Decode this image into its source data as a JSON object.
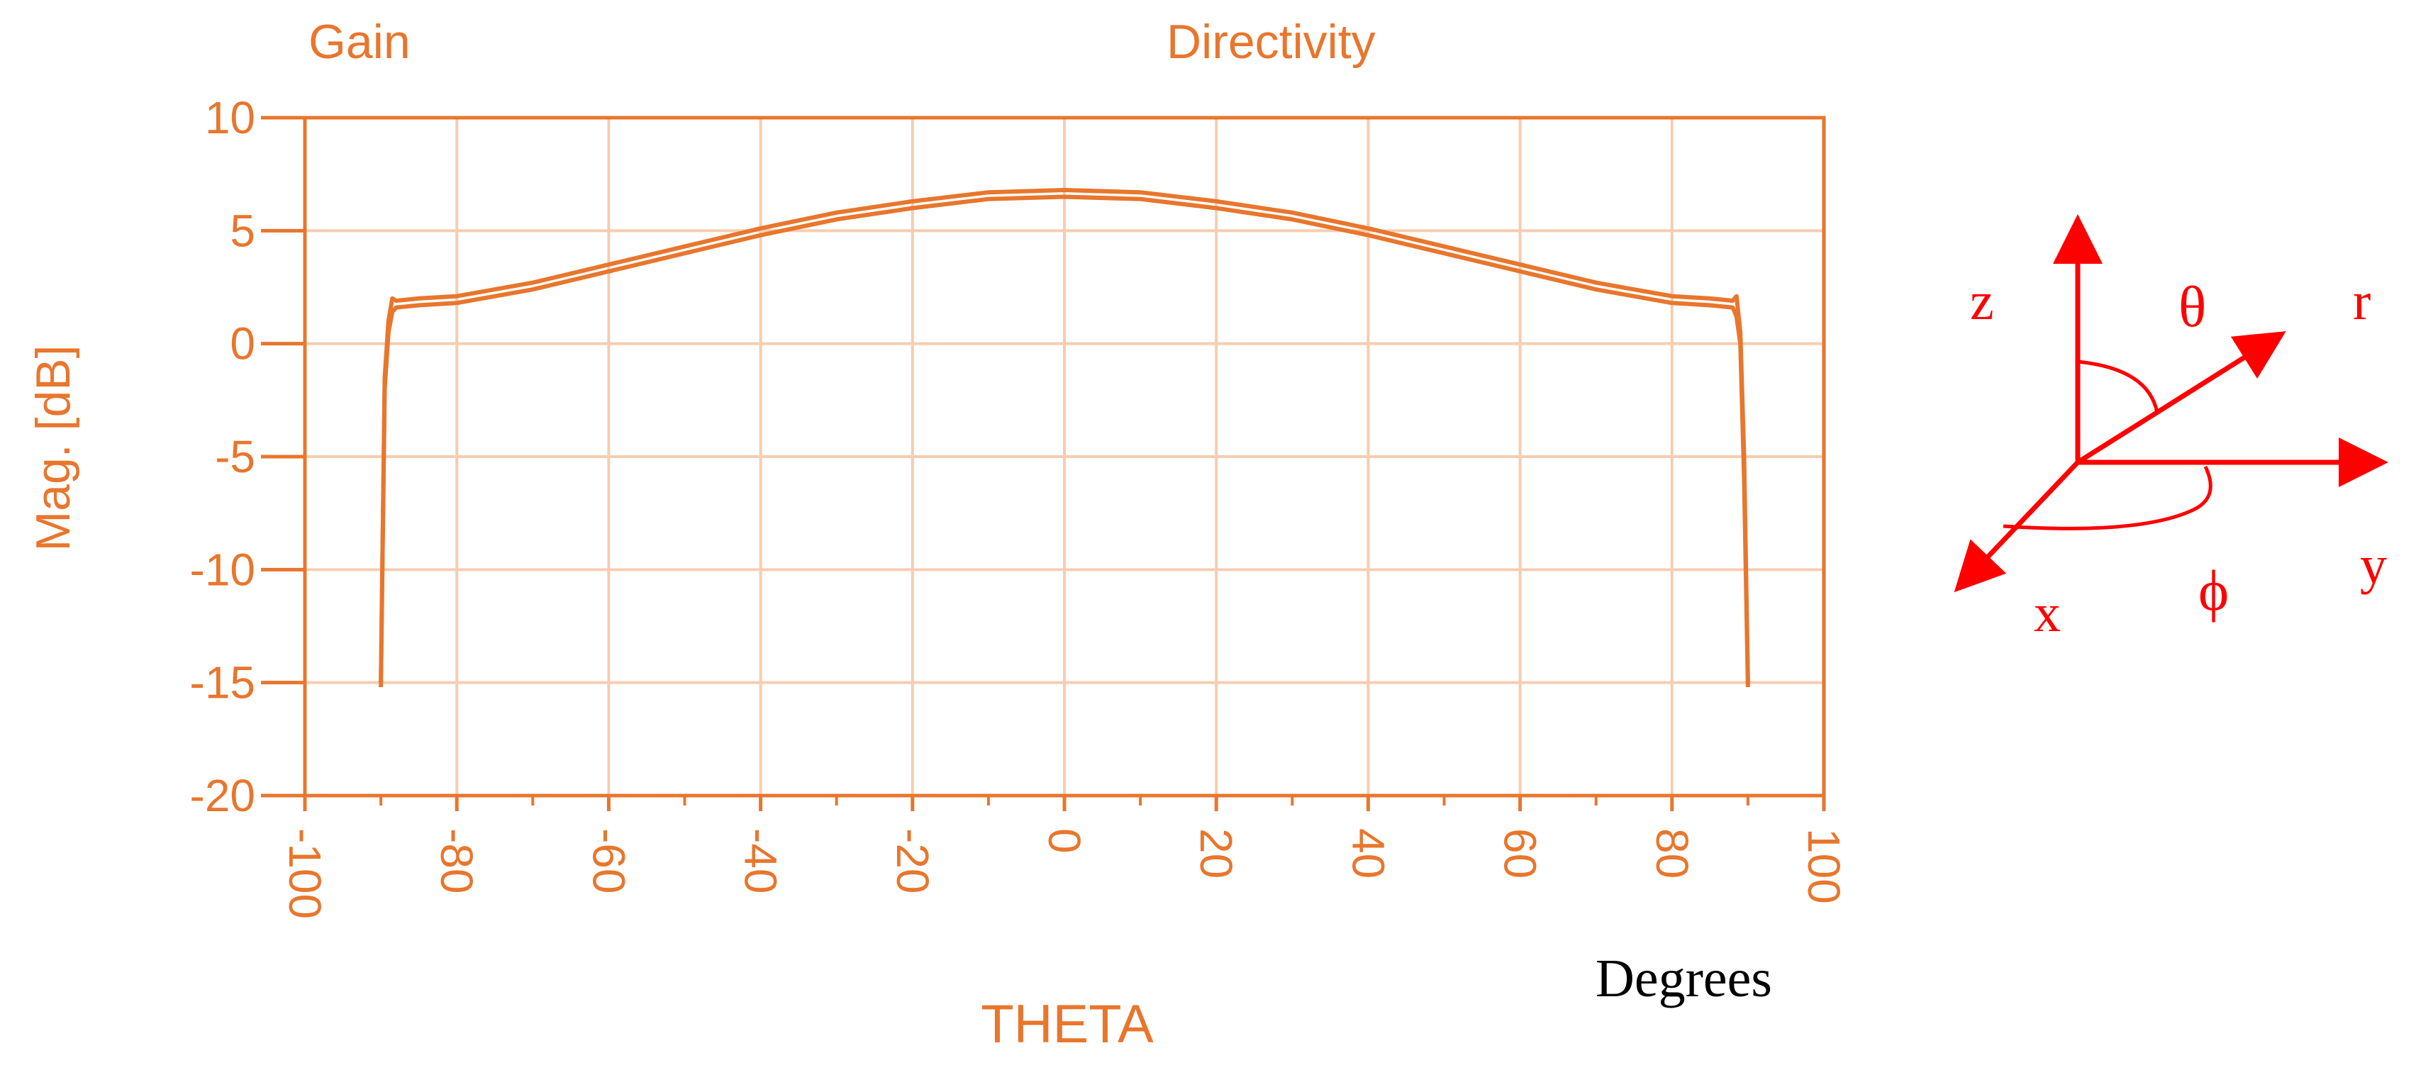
{
  "chart_data": {
    "type": "line",
    "title": "",
    "legend": {
      "placement": "top",
      "entries": [
        "Gain",
        "Directivity"
      ]
    },
    "xlabel": "THETA",
    "x_unit_note": "Degrees",
    "ylabel": "Mag. [dB]",
    "xlim": [
      -100,
      100
    ],
    "ylim": [
      -20,
      10
    ],
    "x_ticks": [
      -100,
      -80,
      -60,
      -40,
      -20,
      0,
      20,
      40,
      60,
      80,
      100
    ],
    "x_tick_labels": [
      "-100",
      "-80",
      "-60",
      "-40",
      "-20",
      "0",
      "20",
      "40",
      "60",
      "80",
      "100"
    ],
    "y_ticks": [
      10,
      5,
      0,
      -5,
      -10,
      -15,
      -20
    ],
    "y_tick_labels": [
      "10",
      "5",
      "0",
      "-5",
      "-10",
      "-15",
      "-20"
    ],
    "grid": true,
    "colors": {
      "axis": "#e8762d",
      "grid": "#f6cdb0",
      "series": "#e8762d",
      "diagram": "#ff0000"
    },
    "series": [
      {
        "name": "Gain",
        "x": [
          -90,
          -89.5,
          -89,
          -88.5,
          -88,
          -85,
          -80,
          -70,
          -60,
          -50,
          -40,
          -30,
          -20,
          -10,
          0,
          10,
          20,
          30,
          40,
          50,
          60,
          70,
          80,
          85,
          88,
          88.5,
          89,
          89.5,
          90
        ],
        "y": [
          -15.2,
          -2.0,
          0.5,
          1.4,
          1.6,
          1.7,
          1.8,
          2.4,
          3.2,
          4.0,
          4.8,
          5.5,
          6.0,
          6.4,
          6.5,
          6.4,
          6.0,
          5.5,
          4.8,
          4.0,
          3.2,
          2.4,
          1.8,
          1.7,
          1.6,
          1.2,
          0.0,
          -6.0,
          -15.2
        ]
      },
      {
        "name": "Directivity",
        "x": [
          -90,
          -89.5,
          -89,
          -88.5,
          -88,
          -85,
          -80,
          -70,
          -60,
          -50,
          -40,
          -30,
          -20,
          -10,
          0,
          10,
          20,
          30,
          40,
          50,
          60,
          70,
          80,
          85,
          88,
          88.5,
          89,
          89.5,
          90
        ],
        "y": [
          -15.0,
          -1.5,
          1.0,
          2.0,
          1.9,
          2.0,
          2.1,
          2.7,
          3.5,
          4.3,
          5.1,
          5.8,
          6.3,
          6.7,
          6.8,
          6.7,
          6.3,
          5.8,
          5.1,
          4.3,
          3.5,
          2.7,
          2.1,
          2.0,
          1.9,
          2.1,
          0.5,
          -5.0,
          -15.0
        ]
      }
    ]
  },
  "diagram": {
    "labels": {
      "z": "z",
      "theta": "θ",
      "r": "r",
      "x": "x",
      "phi": "ϕ",
      "y": "y"
    }
  }
}
